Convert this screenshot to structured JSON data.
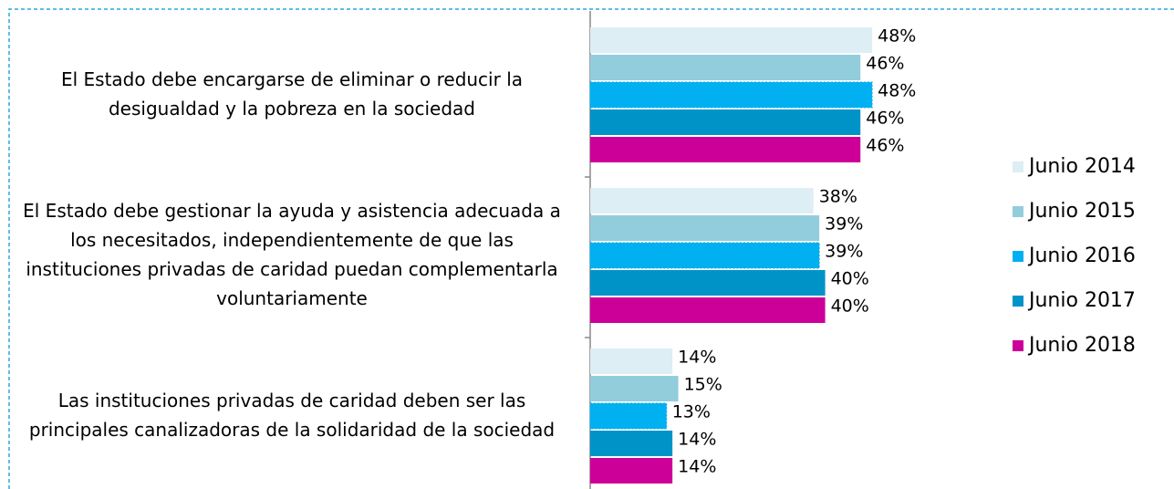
{
  "chart_data": {
    "type": "bar",
    "orientation": "horizontal",
    "categories": [
      "El Estado debe encargarse de eliminar o reducir la desigualdad y la pobreza en la sociedad",
      "El Estado debe gestionar la ayuda y asistencia adecuada a los necesitados, independientemente de que las instituciones privadas de caridad puedan complementarla voluntariamente",
      "Las instituciones privadas de caridad deben ser las principales canalizadoras de la solidaridad de la sociedad"
    ],
    "series": [
      {
        "name": "Junio 2014",
        "color": "#ddeef4",
        "values": [
          48,
          38,
          14
        ],
        "value_labels": [
          "48%",
          "38%",
          "14%"
        ]
      },
      {
        "name": "Junio 2015",
        "color": "#92cddc",
        "values": [
          46,
          39,
          15
        ],
        "value_labels": [
          "46%",
          "39%",
          "15%"
        ]
      },
      {
        "name": "Junio 2016",
        "color": "#00b0f0",
        "values": [
          48,
          39,
          13
        ],
        "value_labels": [
          "48%",
          "39%",
          "13%"
        ]
      },
      {
        "name": "Junio 2017",
        "color": "#0093c8",
        "values": [
          46,
          40,
          14
        ],
        "value_labels": [
          "46%",
          "40%",
          "14%"
        ]
      },
      {
        "name": "Junio 2018",
        "color": "#cc0099",
        "values": [
          46,
          40,
          14
        ],
        "value_labels": [
          "46%",
          "40%",
          "14%"
        ]
      }
    ],
    "xlim": [
      0,
      100
    ],
    "legend": "right"
  }
}
